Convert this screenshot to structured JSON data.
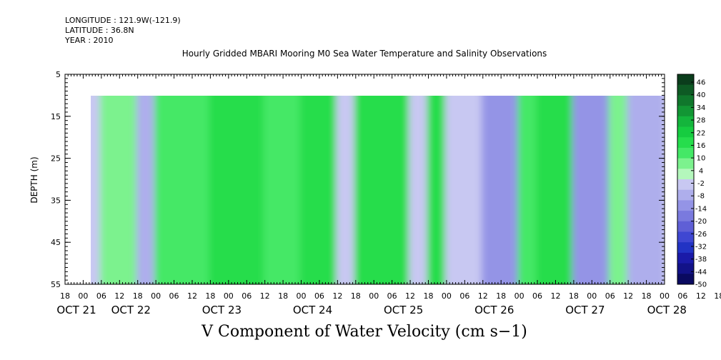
{
  "header": {
    "longitude": "LONGITUDE : 121.9W(-121.9)",
    "latitude": "LATITUDE : 36.8N",
    "year": "YEAR : 2010"
  },
  "chart_data": {
    "type": "heatmap",
    "title": "Hourly Gridded MBARI Mooring M0 Sea Water Temperature and Salinity Observations",
    "xlabel": "V Component of Water Velocity (cm s−1)",
    "ylabel": "DEPTH (m)",
    "y_reversed": true,
    "ylim": [
      5,
      55
    ],
    "data_depth_range": [
      10,
      55
    ],
    "y_ticks": [
      "5",
      "15",
      "25",
      "35",
      "45",
      "55"
    ],
    "x_range_hours": [
      0,
      198
    ],
    "data_start_hour": 6,
    "x_hour_ticks": [
      "18",
      "00",
      "06",
      "12",
      "18",
      "00",
      "06",
      "12",
      "18",
      "00",
      "06",
      "12",
      "18",
      "00",
      "06",
      "12",
      "18",
      "00",
      "06",
      "12",
      "18",
      "00",
      "06",
      "12",
      "18",
      "00",
      "06",
      "12",
      "18",
      "00",
      "06",
      "12",
      "18",
      "00",
      "06",
      "12",
      "18"
    ],
    "x_day_labels": [
      {
        "label": "OCT 21",
        "hour": 0
      },
      {
        "label": "OCT 22",
        "hour": 18
      },
      {
        "label": "OCT 23",
        "hour": 48
      },
      {
        "label": "OCT 24",
        "hour": 78
      },
      {
        "label": "OCT 25",
        "hour": 108
      },
      {
        "label": "OCT 26",
        "hour": 138
      },
      {
        "label": "OCT 27",
        "hour": 168
      },
      {
        "label": "OCT 28",
        "hour": 195
      }
    ],
    "colorbar_labels": [
      "46",
      "40",
      "34",
      "28",
      "22",
      "16",
      "10",
      "4",
      "-2",
      "-8",
      "-14",
      "-20",
      "-26",
      "-32",
      "-38",
      "-44",
      "-50"
    ],
    "colorbar_colors": [
      "#0b3d1c",
      "#0e5a24",
      "#10772c",
      "#129634",
      "#14b53c",
      "#16cc40",
      "#26dd4c",
      "#44e866",
      "#7cf28e",
      "#b4f7bc",
      "#c8c8f2",
      "#aeaeec",
      "#9494e6",
      "#7a7ade",
      "#5f5fd6",
      "#3f47d2",
      "#2233c4",
      "#1a1aa8",
      "#121288",
      "#0a0a60"
    ],
    "velocity_bands": [
      {
        "hour_start": 6,
        "hour_end": 12,
        "value": -6
      },
      {
        "hour_start": 12,
        "hour_end": 24,
        "value": 6
      },
      {
        "hour_start": 24,
        "hour_end": 30,
        "value": -8
      },
      {
        "hour_start": 30,
        "hour_end": 48,
        "value": 12
      },
      {
        "hour_start": 48,
        "hour_end": 66,
        "value": 14
      },
      {
        "hour_start": 66,
        "hour_end": 78,
        "value": 10
      },
      {
        "hour_start": 78,
        "hour_end": 90,
        "value": 16
      },
      {
        "hour_start": 90,
        "hour_end": 96,
        "value": -6
      },
      {
        "hour_start": 96,
        "hour_end": 114,
        "value": 14
      },
      {
        "hour_start": 114,
        "hour_end": 120,
        "value": -4
      },
      {
        "hour_start": 120,
        "hour_end": 126,
        "value": 14
      },
      {
        "hour_start": 126,
        "hour_end": 138,
        "value": -6
      },
      {
        "hour_start": 138,
        "hour_end": 150,
        "value": -12
      },
      {
        "hour_start": 150,
        "hour_end": 156,
        "value": 8
      },
      {
        "hour_start": 156,
        "hour_end": 168,
        "value": 14
      },
      {
        "hour_start": 168,
        "hour_end": 180,
        "value": -14
      },
      {
        "hour_start": 180,
        "hour_end": 186,
        "value": 6
      },
      {
        "hour_start": 186,
        "hour_end": 198,
        "value": -10
      }
    ]
  }
}
